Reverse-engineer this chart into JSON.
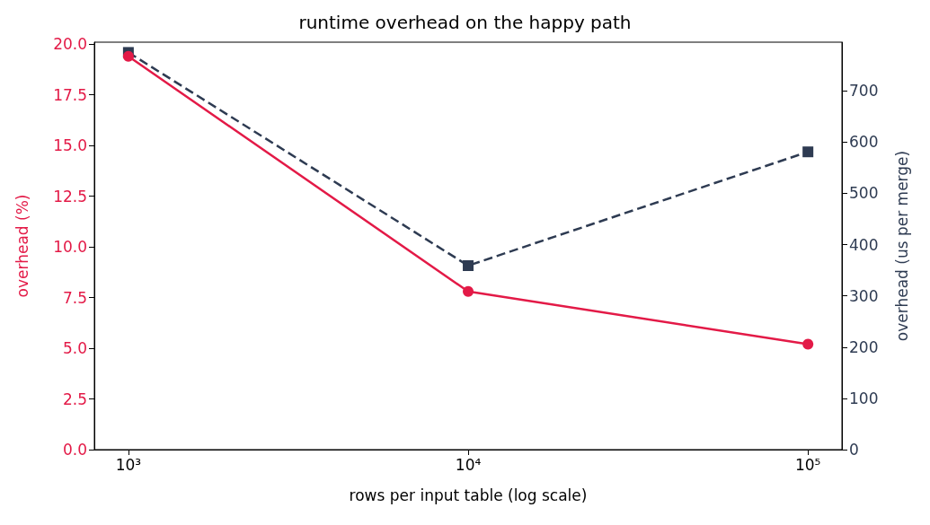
{
  "chart_data": {
    "type": "line",
    "title": "runtime overhead on the happy path",
    "xlabel": "rows per input table (log scale)",
    "ylabel": "overhead (%)",
    "y2label": "overhead (us per merge)",
    "x": [
      1000,
      10000,
      100000
    ],
    "log": "x",
    "xlim": [
      794,
      125900
    ],
    "xticks": [
      {
        "value": 1000,
        "label": "10³"
      },
      {
        "value": 10000,
        "label": "10⁴"
      },
      {
        "value": 100000,
        "label": "10⁵"
      }
    ],
    "ylim": [
      0,
      20.1
    ],
    "yticks": [
      {
        "value": 0,
        "label": "0.0"
      },
      2.5,
      {
        "value": 5,
        "label": "5.0"
      },
      7.5,
      {
        "value": 10,
        "label": "10.0"
      },
      12.5,
      {
        "value": 15,
        "label": "15.0"
      },
      17.5,
      {
        "value": 20,
        "label": "20.0"
      }
    ],
    "y2lim": [
      0,
      795
    ],
    "y2ticks": [
      0,
      100,
      200,
      300,
      400,
      500,
      600,
      700
    ],
    "series": [
      {
        "color": "#e31a47",
        "values": [
          19.4,
          7.8,
          5.2
        ],
        "marker": "circle",
        "line_style": "solid"
      },
      {
        "color": "#2e3b52",
        "values": [
          775,
          359,
          581
        ],
        "axis": "y2",
        "marker": "square",
        "line_style": "dashed"
      }
    ]
  }
}
